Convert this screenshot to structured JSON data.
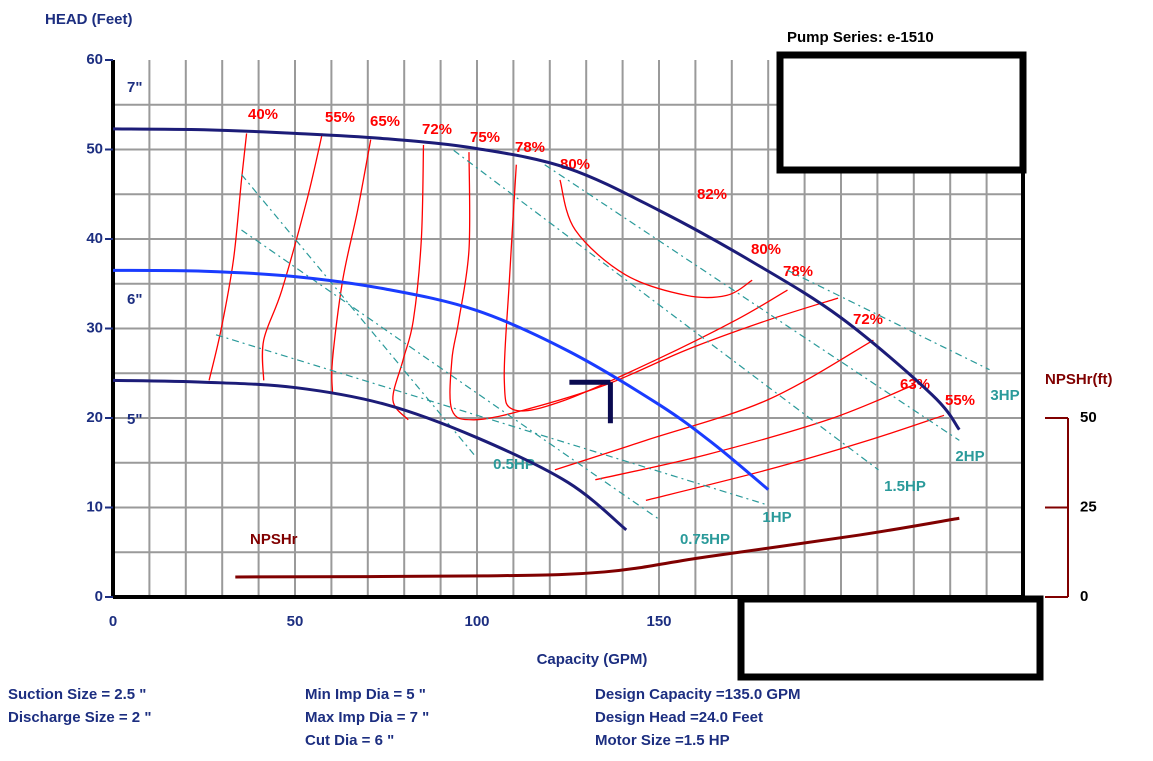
{
  "chart_data": {
    "type": "line",
    "subtitle": "Pump Series: e-1510",
    "y_label": "HEAD (Feet)",
    "x_label": "Capacity (GPM)",
    "y2_label": "NPSHr(ft)",
    "xlim": [
      0,
      250
    ],
    "xticks": [
      0,
      50,
      100,
      150
    ],
    "ylim": [
      0,
      60
    ],
    "yticks": [
      0,
      10,
      20,
      30,
      40,
      50,
      60
    ],
    "y2lim": [
      0,
      150
    ],
    "y2ticks": [
      0,
      25,
      50
    ],
    "x_grid": [
      10,
      20,
      30,
      40,
      50,
      60,
      70,
      80,
      90,
      100,
      110,
      120,
      130,
      140,
      150,
      160,
      170,
      180,
      190,
      200,
      210,
      220,
      230,
      240
    ],
    "y_grid": [
      5,
      10,
      15,
      20,
      25,
      30,
      35,
      40,
      45,
      50,
      55
    ],
    "grid": true,
    "series": [
      {
        "name": "7\"",
        "color": "#1c1c78",
        "x": [
          0,
          25,
          50,
          75,
          100,
          125,
          150,
          175,
          200,
          225,
          232.5
        ],
        "y": [
          52.3,
          52.2,
          51.8,
          51.2,
          50.1,
          47.9,
          43.2,
          37.6,
          31.2,
          22.6,
          18.7
        ]
      },
      {
        "name": "6\"",
        "color": "#1a3cff",
        "x": [
          0,
          25,
          50,
          75,
          100,
          125,
          150,
          165,
          180
        ],
        "y": [
          36.5,
          36.4,
          35.8,
          34.4,
          32.0,
          27.5,
          21.5,
          17.1,
          12.0
        ]
      },
      {
        "name": "5\"",
        "color": "#1c1c78",
        "x": [
          0,
          25,
          50,
          75,
          100,
          125,
          141
        ],
        "y": [
          24.2,
          24.0,
          23.4,
          21.5,
          17.8,
          12.8,
          7.5
        ]
      },
      {
        "name": "NPSHr",
        "color": "#800000",
        "axis": "y2",
        "x": [
          33.6,
          102,
          135,
          163,
          205,
          232.5
        ],
        "y": [
          5.6,
          5.9,
          7.0,
          11.2,
          17.3,
          22.0
        ]
      }
    ],
    "efficiency": {
      "color": "#ff0000",
      "contours": [
        {
          "label": "40%",
          "x": [
            36.7,
            35.3,
            33.1,
            29.7,
            26.4
          ],
          "y": [
            51.8,
            46.6,
            37.7,
            29.9,
            24.2
          ]
        },
        {
          "label": "55%",
          "x": [
            57.5,
            53.3,
            46.4,
            41.4,
            41.4
          ],
          "y": [
            51.8,
            44.4,
            34.3,
            28.7,
            24.2
          ]
        },
        {
          "label": "65%",
          "x": [
            70.8,
            67.2,
            63.1,
            60.3,
            60.3
          ],
          "y": [
            51.1,
            43.2,
            35.4,
            26.5,
            22.9
          ]
        },
        {
          "label": "72%",
          "x": [
            85.3,
            84.7,
            82.5,
            79.7,
            76.9,
            81.1
          ],
          "y": [
            50.5,
            39.9,
            30.9,
            26.5,
            22.0,
            19.8
          ]
        },
        {
          "label": "75%",
          "x": [
            97.8,
            97.8,
            95,
            93.1,
            93.1,
            99.2,
            113,
            135.3,
            157.5,
            179.7,
            199.2
          ],
          "y": [
            49.7,
            38.8,
            30.9,
            26.5,
            20.9,
            19.8,
            20.9,
            23.7,
            27.6,
            30.9,
            33.4
          ]
        },
        {
          "label": "78%",
          "x": [
            110.8,
            108.9,
            107.5,
            110.3,
            124.2,
            149.2,
            171.4,
            185.3
          ],
          "y": [
            48.3,
            35.4,
            24.2,
            20.9,
            22.0,
            26.5,
            31.0,
            34.3
          ]
        },
        {
          "label": "80%",
          "x": [
            122.8,
            127,
            140.8,
            157.5,
            168.6,
            175.6
          ],
          "y": [
            46.6,
            41,
            36,
            33.7,
            33.7,
            35.4
          ]
        },
        {
          "label": "72%",
          "x": [
            121.4,
            146.4,
            179.7,
            208.9
          ],
          "y": [
            14.2,
            17.5,
            22,
            28.7
          ]
        },
        {
          "label": "63%",
          "x": [
            132.5,
            163,
            196.4,
            220
          ],
          "y": [
            13.1,
            15.9,
            19.8,
            23.7
          ]
        },
        {
          "label": "55%",
          "x": [
            146.4,
            179.7,
            207.5,
            228.3
          ],
          "y": [
            10.8,
            14.2,
            17.5,
            20.3
          ]
        }
      ],
      "annotations": [
        "82%",
        "80%",
        "78%"
      ]
    },
    "hp_lines": {
      "color": "#2a9a9a",
      "lines": [
        {
          "label": "0.5HP",
          "x": [
            35.3,
            99.2
          ],
          "y": [
            47.2,
            15.9
          ]
        },
        {
          "label": "0.75HP",
          "x": [
            35.3,
            150.3
          ],
          "y": [
            41,
            8.6
          ]
        },
        {
          "label": "1HP",
          "x": [
            28.3,
            179.7
          ],
          "y": [
            29.3,
            10.3
          ]
        },
        {
          "label": "1.5HP",
          "x": [
            93.6,
            210.3
          ],
          "y": [
            49.9,
            14.2
          ]
        },
        {
          "label": "2HP",
          "x": [
            118.6,
            232.5
          ],
          "y": [
            48.3,
            17.5
          ]
        },
        {
          "label": "3HP",
          "x": [
            185.3,
            240.8
          ],
          "y": [
            36.5,
            25.4
          ]
        }
      ]
    },
    "design_point": {
      "x": 135,
      "y": 24
    }
  },
  "info": [
    [
      "Suction Size = 2.5 \"",
      "Discharge Size = 2 \""
    ],
    [
      "Min Imp Dia = 5 \"",
      "Max Imp Dia = 7 \"",
      "Cut Dia = 6 \""
    ],
    [
      "Design Capacity =135.0 GPM",
      "Design Head =24.0 Feet",
      "Motor Size =1.5 HP"
    ]
  ]
}
